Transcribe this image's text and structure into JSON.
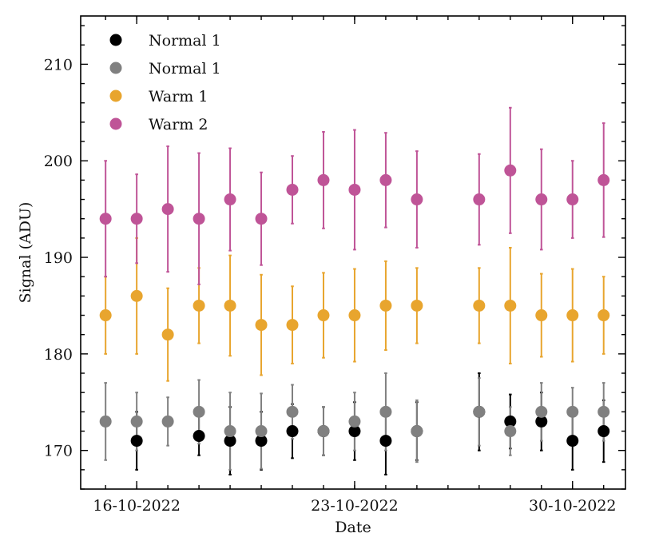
{
  "chart_data": {
    "type": "scatter",
    "title": "",
    "xlabel": "Date",
    "ylabel": "Signal (ADU)",
    "ylim": [
      166,
      215
    ],
    "xlim": [
      0,
      17.5
    ],
    "yticks": [
      170,
      180,
      190,
      200,
      210
    ],
    "xticks": [
      {
        "x": 1.8,
        "label": "16-10-2022"
      },
      {
        "x": 8.8,
        "label": "23-10-2022"
      },
      {
        "x": 15.8,
        "label": "30-10-2022"
      }
    ],
    "legend_position": "top-left",
    "series": [
      {
        "name": "Normal 1",
        "color": "#000000",
        "points": [
          {
            "x": 1.8,
            "y": 171,
            "yerr": 3.0
          },
          {
            "x": 3.8,
            "y": 171.5,
            "yerr": 2.0
          },
          {
            "x": 4.8,
            "y": 171,
            "yerr": 3.5
          },
          {
            "x": 5.8,
            "y": 171,
            "yerr": 3.0
          },
          {
            "x": 6.8,
            "y": 172,
            "yerr": 2.8
          },
          {
            "x": 7.8,
            "y": 172,
            "yerr": 2.5
          },
          {
            "x": 8.8,
            "y": 172,
            "yerr": 3.0
          },
          {
            "x": 9.8,
            "y": 171,
            "yerr": 3.5
          },
          {
            "x": 10.8,
            "y": 172,
            "yerr": 3.0
          },
          {
            "x": 12.8,
            "y": 174,
            "yerr": 4.0
          },
          {
            "x": 13.8,
            "y": 173,
            "yerr": 2.8
          },
          {
            "x": 14.8,
            "y": 173,
            "yerr": 3.0
          },
          {
            "x": 15.8,
            "y": 171,
            "yerr": 3.0
          },
          {
            "x": 16.8,
            "y": 172,
            "yerr": 3.2
          }
        ]
      },
      {
        "name": "Normal 1",
        "color": "#808080",
        "points": [
          {
            "x": 0.8,
            "y": 173,
            "yerr": 4.0
          },
          {
            "x": 1.8,
            "y": 173,
            "yerr": 3.0
          },
          {
            "x": 2.8,
            "y": 173,
            "yerr": 2.5
          },
          {
            "x": 3.8,
            "y": 174,
            "yerr": 3.3
          },
          {
            "x": 4.8,
            "y": 172,
            "yerr": 4.0
          },
          {
            "x": 5.8,
            "y": 172,
            "yerr": 3.9
          },
          {
            "x": 6.8,
            "y": 174,
            "yerr": 2.8
          },
          {
            "x": 7.8,
            "y": 172,
            "yerr": 2.5
          },
          {
            "x": 8.8,
            "y": 173,
            "yerr": 3.0
          },
          {
            "x": 9.8,
            "y": 174,
            "yerr": 4.0
          },
          {
            "x": 10.8,
            "y": 172,
            "yerr": 3.2
          },
          {
            "x": 12.8,
            "y": 174,
            "yerr": 3.5
          },
          {
            "x": 13.8,
            "y": 172,
            "yerr": 2.5
          },
          {
            "x": 14.8,
            "y": 174,
            "yerr": 3.0
          },
          {
            "x": 15.8,
            "y": 174,
            "yerr": 2.5
          },
          {
            "x": 16.8,
            "y": 174,
            "yerr": 3.0
          }
        ]
      },
      {
        "name": "Warm 1",
        "color": "#e8a52e",
        "points": [
          {
            "x": 0.8,
            "y": 184,
            "yerr": 4.0
          },
          {
            "x": 1.8,
            "y": 186,
            "yerr": 6.0
          },
          {
            "x": 2.8,
            "y": 182,
            "yerr": 4.8
          },
          {
            "x": 3.8,
            "y": 185,
            "yerr": 3.9
          },
          {
            "x": 4.8,
            "y": 185,
            "yerr": 5.2
          },
          {
            "x": 5.8,
            "y": 183,
            "yerr": 5.2
          },
          {
            "x": 6.8,
            "y": 183,
            "yerr": 4.0
          },
          {
            "x": 7.8,
            "y": 184,
            "yerr": 4.4
          },
          {
            "x": 8.8,
            "y": 184,
            "yerr": 4.8
          },
          {
            "x": 9.8,
            "y": 185,
            "yerr": 4.6
          },
          {
            "x": 10.8,
            "y": 185,
            "yerr": 3.9
          },
          {
            "x": 12.8,
            "y": 185,
            "yerr": 3.9
          },
          {
            "x": 13.8,
            "y": 185,
            "yerr": 6.0
          },
          {
            "x": 14.8,
            "y": 184,
            "yerr": 4.3
          },
          {
            "x": 15.8,
            "y": 184,
            "yerr": 4.8
          },
          {
            "x": 16.8,
            "y": 184,
            "yerr": 4.0
          }
        ]
      },
      {
        "name": "Warm 2",
        "color": "#bf5497",
        "points": [
          {
            "x": 0.8,
            "y": 194,
            "yerr": 6.0
          },
          {
            "x": 1.8,
            "y": 194,
            "yerr": 4.6
          },
          {
            "x": 2.8,
            "y": 195,
            "yerr": 6.5
          },
          {
            "x": 3.8,
            "y": 194,
            "yerr": 6.8
          },
          {
            "x": 4.8,
            "y": 196,
            "yerr": 5.3
          },
          {
            "x": 5.8,
            "y": 194,
            "yerr": 4.8
          },
          {
            "x": 6.8,
            "y": 197,
            "yerr": 3.5
          },
          {
            "x": 7.8,
            "y": 198,
            "yerr": 5.0
          },
          {
            "x": 8.8,
            "y": 197,
            "yerr": 6.2
          },
          {
            "x": 9.8,
            "y": 198,
            "yerr": 4.9
          },
          {
            "x": 10.8,
            "y": 196,
            "yerr": 5.0
          },
          {
            "x": 12.8,
            "y": 196,
            "yerr": 4.7
          },
          {
            "x": 13.8,
            "y": 199,
            "yerr": 6.5
          },
          {
            "x": 14.8,
            "y": 196,
            "yerr": 5.2
          },
          {
            "x": 15.8,
            "y": 196,
            "yerr": 4.0
          },
          {
            "x": 16.8,
            "y": 198,
            "yerr": 5.9
          }
        ]
      }
    ]
  }
}
